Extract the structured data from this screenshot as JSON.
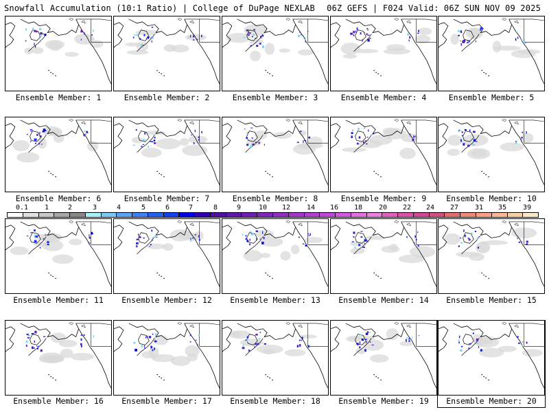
{
  "header": {
    "left_title": "Snowfall Accumulation (10:1 Ratio) | College of DuPage NEXLAB",
    "right_title": "06Z GEFS | F024 Valid: 06Z SUN NOV 09 2025"
  },
  "colorbar": {
    "labels": [
      "0.1",
      "1",
      "2",
      "3",
      "4",
      "5",
      "6",
      "7",
      "8",
      "9",
      "10",
      "12",
      "14",
      "16",
      "18",
      "20",
      "22",
      "24",
      "27",
      "31",
      "35",
      "39"
    ],
    "colors": [
      "#ffffff",
      "#e0e0e0",
      "#c8c8c8",
      "#a8a8a8",
      "#888888",
      "#a8f0f8",
      "#80c8f0",
      "#60a0f0",
      "#4080f0",
      "#2860f0",
      "#1440f0",
      "#0000e8",
      "#3000b0",
      "#5010a0",
      "#6018a8",
      "#7020b0",
      "#8028b8",
      "#9030c0",
      "#a038c8",
      "#b040d0",
      "#c048d8",
      "#d058e0",
      "#e070e0",
      "#e880e0",
      "#e060c0",
      "#d850a8",
      "#d04898",
      "#d05080",
      "#e07070",
      "#f08878",
      "#f8a080",
      "#f8b890",
      "#f8d0a8",
      "#f8e8c8"
    ]
  },
  "members": [
    {
      "label": "Ensemble Member: 1"
    },
    {
      "label": "Ensemble Member: 2"
    },
    {
      "label": "Ensemble Member: 3"
    },
    {
      "label": "Ensemble Member: 4"
    },
    {
      "label": "Ensemble Member: 5"
    },
    {
      "label": "Ensemble Member: 6"
    },
    {
      "label": "Ensemble Member: 7"
    },
    {
      "label": "Ensemble Member: 8"
    },
    {
      "label": "Ensemble Member: 9"
    },
    {
      "label": "Ensemble Member: 10"
    },
    {
      "label": "Ensemble Member: 11"
    },
    {
      "label": "Ensemble Member: 12"
    },
    {
      "label": "Ensemble Member: 13"
    },
    {
      "label": "Ensemble Member: 14"
    },
    {
      "label": "Ensemble Member: 15"
    },
    {
      "label": "Ensemble Member: 16"
    },
    {
      "label": "Ensemble Member: 17"
    },
    {
      "label": "Ensemble Member: 18"
    },
    {
      "label": "Ensemble Member: 19"
    },
    {
      "label": "Ensemble Member: 20"
    }
  ]
}
